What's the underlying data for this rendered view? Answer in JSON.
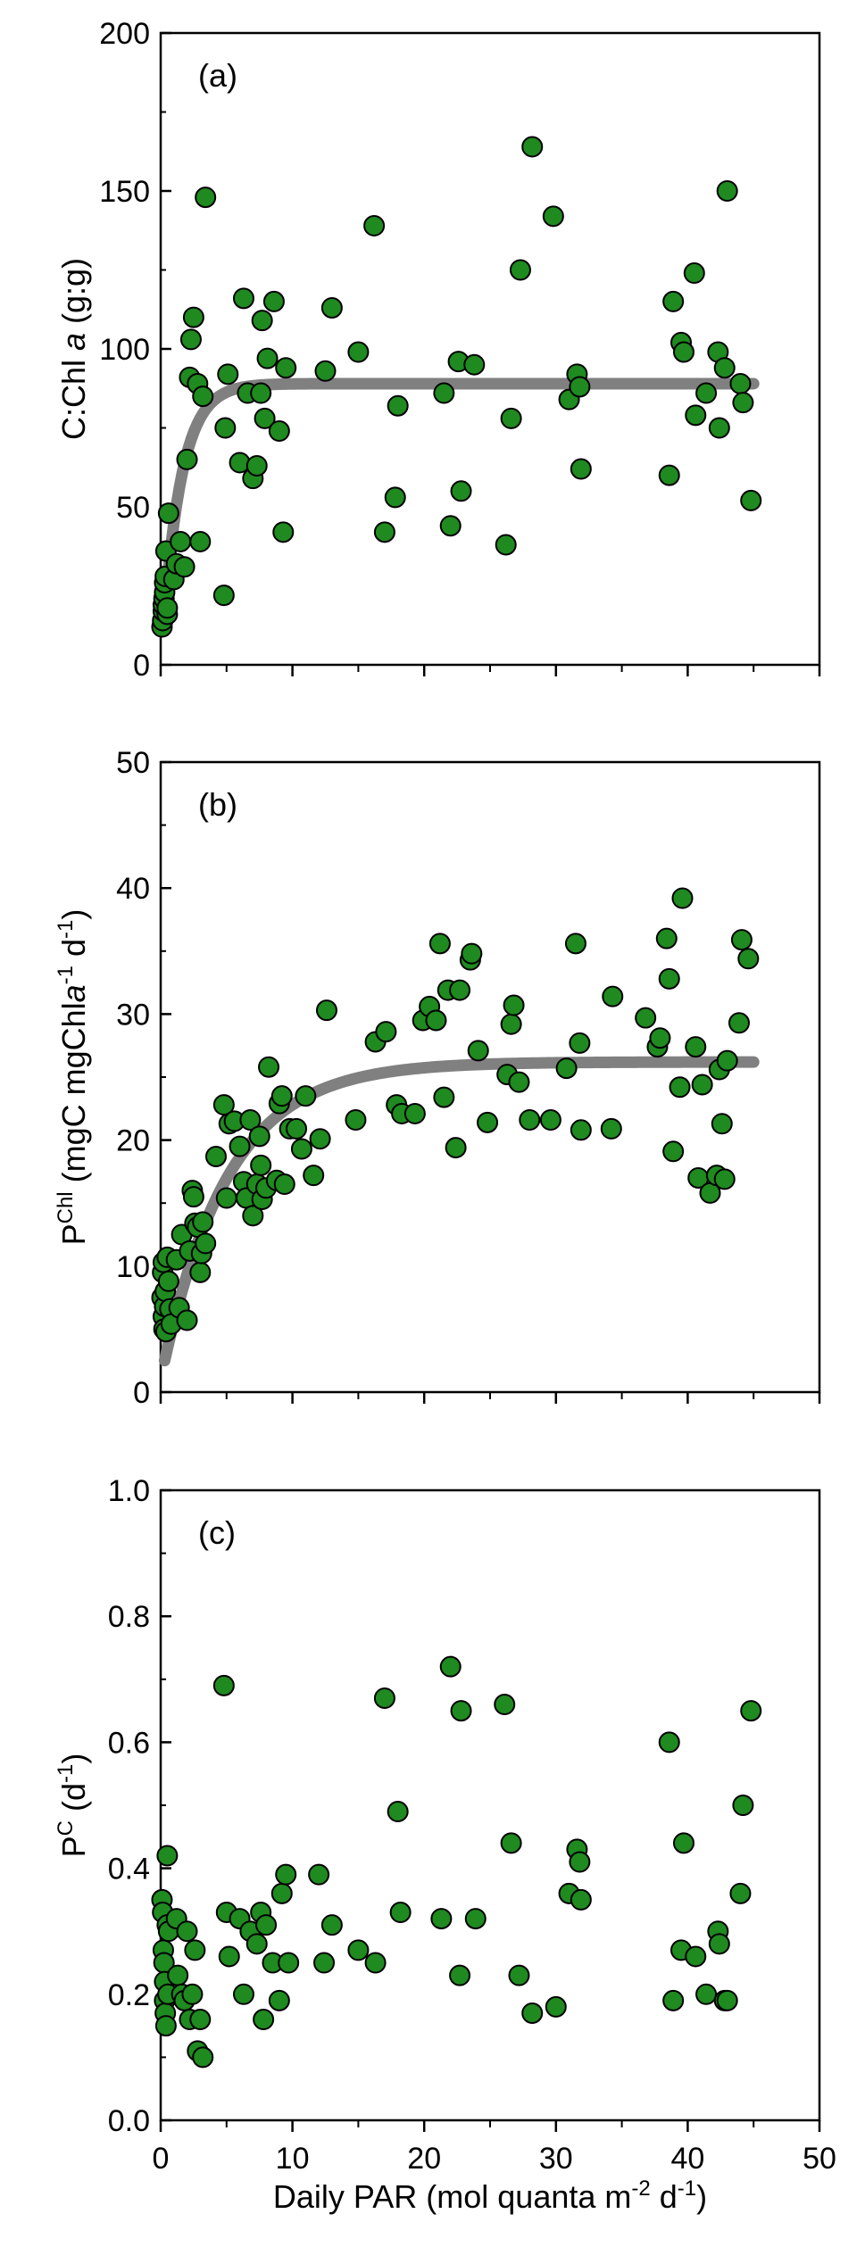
{
  "chart_data": {
    "type": "scatter",
    "shared_x": {
      "label_prefix": "Daily PAR (mol quanta m",
      "label_sup1": "-2",
      "label_mid": " d",
      "label_sup2": "-1",
      "label_suffix": ")",
      "range": [
        0,
        50
      ],
      "ticks": [
        0,
        10,
        20,
        30,
        40,
        50
      ],
      "minor_step": 5
    },
    "panels": [
      {
        "panel_label": "(a)",
        "ylabel_parts": [
          {
            "text": "C:Chl ",
            "style": "normal"
          },
          {
            "text": "a",
            "style": "italic"
          },
          {
            "text": " (g:g)",
            "style": "normal"
          }
        ],
        "ylim": [
          0,
          200
        ],
        "yticks": [
          0,
          50,
          100,
          150,
          200
        ],
        "yminor_step": 25,
        "fit_curve": {
          "type": "saturating",
          "ymax": 89,
          "k": 0.7,
          "x0": 0,
          "y0": 0,
          "x_start": 0.3,
          "x_end": 45
        },
        "points": [
          [
            0.1,
            12
          ],
          [
            0.15,
            14
          ],
          [
            0.2,
            17
          ],
          [
            0.2,
            19
          ],
          [
            0.25,
            21
          ],
          [
            0.3,
            23
          ],
          [
            0.3,
            26
          ],
          [
            0.35,
            28
          ],
          [
            0.4,
            36
          ],
          [
            0.5,
            16
          ],
          [
            0.6,
            48
          ],
          [
            0.5,
            18
          ],
          [
            1.0,
            27
          ],
          [
            1.2,
            32
          ],
          [
            1.5,
            39
          ],
          [
            1.8,
            31
          ],
          [
            2.0,
            65
          ],
          [
            2.2,
            91
          ],
          [
            2.3,
            103
          ],
          [
            2.5,
            110
          ],
          [
            2.8,
            89
          ],
          [
            3.0,
            39
          ],
          [
            3.2,
            85
          ],
          [
            3.4,
            148
          ],
          [
            4.8,
            22
          ],
          [
            4.9,
            75
          ],
          [
            5.1,
            92
          ],
          [
            6.0,
            64
          ],
          [
            6.3,
            116
          ],
          [
            6.6,
            86
          ],
          [
            7.0,
            59
          ],
          [
            7.3,
            63
          ],
          [
            7.6,
            86
          ],
          [
            7.7,
            109
          ],
          [
            7.9,
            78
          ],
          [
            8.1,
            97
          ],
          [
            8.6,
            115
          ],
          [
            9.0,
            74
          ],
          [
            9.3,
            42
          ],
          [
            9.5,
            94
          ],
          [
            12.5,
            93
          ],
          [
            13.0,
            113
          ],
          [
            15.0,
            99
          ],
          [
            16.2,
            139
          ],
          [
            17.0,
            42
          ],
          [
            17.8,
            53
          ],
          [
            18.0,
            82
          ],
          [
            21.5,
            86
          ],
          [
            22.0,
            44
          ],
          [
            22.6,
            96
          ],
          [
            22.8,
            55
          ],
          [
            23.8,
            95
          ],
          [
            26.2,
            38
          ],
          [
            26.6,
            78
          ],
          [
            27.3,
            125
          ],
          [
            28.2,
            164
          ],
          [
            29.8,
            142
          ],
          [
            31.0,
            84
          ],
          [
            31.6,
            92
          ],
          [
            31.8,
            88
          ],
          [
            31.9,
            62
          ],
          [
            38.6,
            60
          ],
          [
            38.9,
            115
          ],
          [
            39.5,
            102
          ],
          [
            39.7,
            99
          ],
          [
            40.5,
            124
          ],
          [
            40.6,
            79
          ],
          [
            41.4,
            86
          ],
          [
            42.3,
            99
          ],
          [
            42.4,
            75
          ],
          [
            42.8,
            94
          ],
          [
            43.0,
            150
          ],
          [
            44.0,
            89
          ],
          [
            44.2,
            83
          ],
          [
            44.8,
            52
          ]
        ]
      },
      {
        "panel_label": "(b)",
        "ylabel_parts": [
          {
            "text": "P",
            "style": "normal"
          },
          {
            "text": "Chl",
            "style": "sup"
          },
          {
            "text": " (mgC mgChl",
            "style": "normal"
          },
          {
            "text": "a",
            "style": "italic"
          },
          {
            "text": "-1",
            "style": "sup"
          },
          {
            "text": " d",
            "style": "normal"
          },
          {
            "text": "-1",
            "style": "sup"
          },
          {
            "text": ")",
            "style": "normal"
          }
        ],
        "ylim": [
          0,
          50
        ],
        "yticks": [
          0,
          10,
          20,
          30,
          40,
          50
        ],
        "yminor_step": 5,
        "fit_curve": {
          "type": "saturating",
          "ymax": 26.2,
          "k": 0.2,
          "x0": 0.3,
          "y0": 2.5,
          "x_start": 0.3,
          "x_end": 45
        },
        "points": [
          [
            0.1,
            7.5
          ],
          [
            0.15,
            9.5
          ],
          [
            0.2,
            6
          ],
          [
            0.2,
            10.3
          ],
          [
            0.25,
            5
          ],
          [
            0.3,
            6.8
          ],
          [
            0.35,
            8
          ],
          [
            0.4,
            4.8
          ],
          [
            0.5,
            10.7
          ],
          [
            0.6,
            8.8
          ],
          [
            0.7,
            6.6
          ],
          [
            0.8,
            5.4
          ],
          [
            1.2,
            10.5
          ],
          [
            1.4,
            6.7
          ],
          [
            1.6,
            12.5
          ],
          [
            2.0,
            5.7
          ],
          [
            2.2,
            11.2
          ],
          [
            2.4,
            16
          ],
          [
            2.5,
            15.5
          ],
          [
            2.6,
            13.4
          ],
          [
            2.8,
            13.1
          ],
          [
            3.0,
            9.5
          ],
          [
            3.1,
            11
          ],
          [
            3.2,
            13.5
          ],
          [
            3.4,
            11.8
          ],
          [
            4.2,
            18.7
          ],
          [
            4.8,
            22.8
          ],
          [
            5.0,
            15.4
          ],
          [
            5.2,
            21.3
          ],
          [
            5.6,
            21.5
          ],
          [
            6.0,
            19.5
          ],
          [
            6.3,
            16.7
          ],
          [
            6.5,
            15.4
          ],
          [
            6.8,
            21.6
          ],
          [
            7.0,
            14
          ],
          [
            7.3,
            16.5
          ],
          [
            7.5,
            20.3
          ],
          [
            7.6,
            18
          ],
          [
            7.7,
            15.3
          ],
          [
            8.0,
            16.2
          ],
          [
            8.2,
            25.8
          ],
          [
            8.8,
            16.8
          ],
          [
            9.0,
            22.9
          ],
          [
            9.2,
            23.5
          ],
          [
            9.4,
            16.5
          ],
          [
            9.8,
            20.9
          ],
          [
            10.3,
            20.9
          ],
          [
            10.7,
            19.3
          ],
          [
            11.0,
            23.5
          ],
          [
            11.6,
            17.2
          ],
          [
            12.1,
            20.1
          ],
          [
            12.6,
            30.3
          ],
          [
            14.8,
            21.6
          ],
          [
            16.3,
            27.8
          ],
          [
            17.1,
            28.6
          ],
          [
            17.9,
            22.8
          ],
          [
            18.3,
            22.1
          ],
          [
            19.3,
            22.1
          ],
          [
            19.9,
            29.5
          ],
          [
            20.4,
            30.6
          ],
          [
            20.9,
            29.5
          ],
          [
            21.2,
            35.6
          ],
          [
            21.5,
            23.4
          ],
          [
            21.8,
            31.9
          ],
          [
            22.4,
            19.4
          ],
          [
            22.7,
            31.9
          ],
          [
            23.5,
            34.3
          ],
          [
            23.6,
            34.8
          ],
          [
            24.1,
            27.1
          ],
          [
            24.8,
            21.4
          ],
          [
            26.3,
            25.2
          ],
          [
            26.6,
            29.2
          ],
          [
            26.8,
            30.7
          ],
          [
            27.2,
            24.6
          ],
          [
            28.0,
            21.6
          ],
          [
            29.6,
            21.6
          ],
          [
            30.8,
            25.7
          ],
          [
            31.5,
            35.6
          ],
          [
            31.8,
            27.7
          ],
          [
            31.9,
            20.8
          ],
          [
            34.2,
            20.9
          ],
          [
            34.3,
            31.4
          ],
          [
            36.8,
            29.7
          ],
          [
            37.7,
            27.4
          ],
          [
            37.9,
            28.1
          ],
          [
            38.4,
            36
          ],
          [
            38.6,
            32.8
          ],
          [
            38.9,
            19.1
          ],
          [
            39.4,
            24.2
          ],
          [
            39.6,
            39.2
          ],
          [
            40.6,
            27.4
          ],
          [
            40.8,
            17
          ],
          [
            41.1,
            24.4
          ],
          [
            41.7,
            15.8
          ],
          [
            42.2,
            17.2
          ],
          [
            42.4,
            25.6
          ],
          [
            42.6,
            21.3
          ],
          [
            42.8,
            16.9
          ],
          [
            43.0,
            26.3
          ],
          [
            43.9,
            29.3
          ],
          [
            44.1,
            35.9
          ],
          [
            44.6,
            34.4
          ]
        ]
      },
      {
        "panel_label": "(c)",
        "ylabel_parts": [
          {
            "text": "P",
            "style": "normal"
          },
          {
            "text": "C",
            "style": "sup"
          },
          {
            "text": " (d",
            "style": "normal"
          },
          {
            "text": "-1",
            "style": "sup"
          },
          {
            "text": ")",
            "style": "normal"
          }
        ],
        "ylim": [
          0,
          1.0
        ],
        "yticks": [
          0.0,
          0.2,
          0.4,
          0.6,
          0.8,
          1.0
        ],
        "yticklabels": [
          "0.0",
          "0.2",
          "0.4",
          "0.6",
          "0.8",
          "1.0"
        ],
        "yminor_step": 0.1,
        "fit_curve": null,
        "points": [
          [
            0.1,
            0.35
          ],
          [
            0.15,
            0.33
          ],
          [
            0.2,
            0.27
          ],
          [
            0.25,
            0.25
          ],
          [
            0.3,
            0.22
          ],
          [
            0.3,
            0.19
          ],
          [
            0.35,
            0.17
          ],
          [
            0.4,
            0.15
          ],
          [
            0.5,
            0.31
          ],
          [
            0.5,
            0.42
          ],
          [
            0.55,
            0.2
          ],
          [
            0.6,
            0.3
          ],
          [
            1.2,
            0.32
          ],
          [
            1.3,
            0.23
          ],
          [
            1.6,
            0.2
          ],
          [
            1.8,
            0.19
          ],
          [
            2.0,
            0.3
          ],
          [
            2.2,
            0.16
          ],
          [
            2.4,
            0.2
          ],
          [
            2.6,
            0.27
          ],
          [
            2.8,
            0.11
          ],
          [
            3.0,
            0.16
          ],
          [
            3.2,
            0.1
          ],
          [
            4.8,
            0.69
          ],
          [
            5.0,
            0.33
          ],
          [
            5.2,
            0.26
          ],
          [
            6.0,
            0.32
          ],
          [
            6.3,
            0.2
          ],
          [
            6.8,
            0.3
          ],
          [
            7.3,
            0.28
          ],
          [
            7.6,
            0.33
          ],
          [
            7.8,
            0.16
          ],
          [
            8.0,
            0.31
          ],
          [
            8.5,
            0.25
          ],
          [
            9.0,
            0.19
          ],
          [
            9.2,
            0.36
          ],
          [
            9.5,
            0.39
          ],
          [
            9.7,
            0.25
          ],
          [
            12.0,
            0.39
          ],
          [
            12.4,
            0.25
          ],
          [
            13.0,
            0.31
          ],
          [
            15.0,
            0.27
          ],
          [
            16.3,
            0.25
          ],
          [
            17.0,
            0.67
          ],
          [
            18.0,
            0.49
          ],
          [
            18.2,
            0.33
          ],
          [
            21.3,
            0.32
          ],
          [
            22.0,
            0.72
          ],
          [
            22.7,
            0.23
          ],
          [
            22.8,
            0.65
          ],
          [
            23.9,
            0.32
          ],
          [
            26.1,
            0.66
          ],
          [
            26.6,
            0.44
          ],
          [
            27.2,
            0.23
          ],
          [
            28.2,
            0.17
          ],
          [
            30.0,
            0.18
          ],
          [
            31.0,
            0.36
          ],
          [
            31.6,
            0.43
          ],
          [
            31.8,
            0.41
          ],
          [
            31.9,
            0.35
          ],
          [
            38.6,
            0.6
          ],
          [
            38.9,
            0.19
          ],
          [
            39.5,
            0.27
          ],
          [
            39.7,
            0.44
          ],
          [
            40.6,
            0.26
          ],
          [
            41.4,
            0.2
          ],
          [
            42.3,
            0.3
          ],
          [
            42.4,
            0.28
          ],
          [
            42.8,
            0.19
          ],
          [
            43.0,
            0.19
          ],
          [
            44.0,
            0.36
          ],
          [
            44.2,
            0.5
          ],
          [
            44.8,
            0.65
          ]
        ]
      }
    ]
  }
}
